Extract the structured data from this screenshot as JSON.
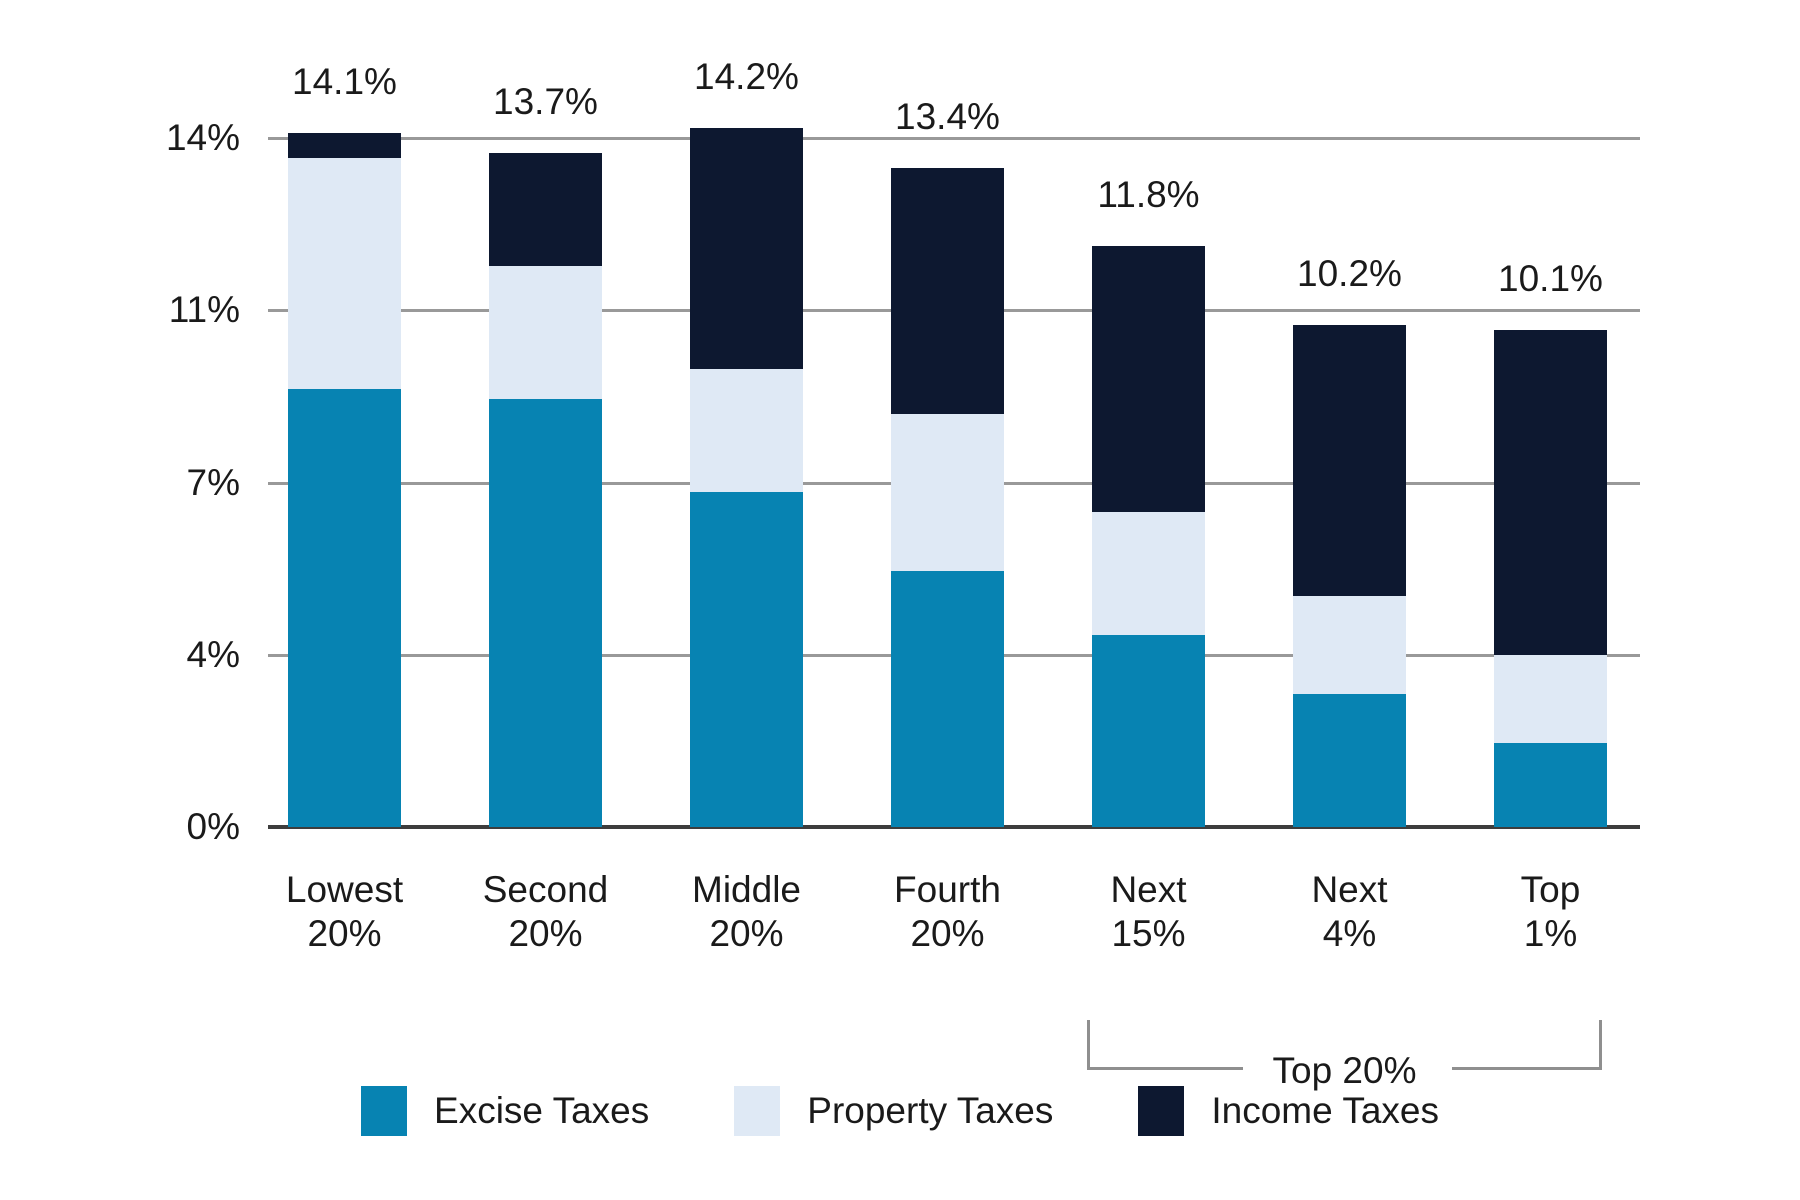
{
  "chart_data": {
    "type": "bar",
    "stacked": true,
    "title": "",
    "xlabel": "",
    "ylabel": "",
    "categories": [
      [
        "Lowest",
        "20%"
      ],
      [
        "Second",
        "20%"
      ],
      [
        "Middle",
        "20%"
      ],
      [
        "Fourth",
        "20%"
      ],
      [
        "Next",
        "15%"
      ],
      [
        "Next",
        "4%"
      ],
      [
        "Top",
        "1%"
      ]
    ],
    "series": [
      {
        "name": "Excise Taxes",
        "color": "#0783b2",
        "values": [
          8.9,
          8.7,
          6.8,
          5.2,
          3.9,
          2.7,
          1.7
        ]
      },
      {
        "name": "Property Taxes",
        "color": "#dfe9f5",
        "values": [
          4.7,
          2.7,
          2.5,
          3.2,
          2.5,
          2.0,
          1.8
        ]
      },
      {
        "name": "Income Taxes",
        "color": "#0d1830",
        "values": [
          0.5,
          2.3,
          4.9,
          5.0,
          5.4,
          5.5,
          6.6
        ]
      }
    ],
    "totals": [
      "14.1%",
      "13.7%",
      "14.2%",
      "13.4%",
      "11.8%",
      "10.2%",
      "10.1%"
    ],
    "y_axis": {
      "min": 0,
      "max": 14,
      "gridline_values": [
        3.5,
        7,
        10.5,
        14
      ],
      "gridline_labels": [
        "4%",
        "7%",
        "11%",
        "14%"
      ],
      "baseline_label": "0%",
      "grid": true
    },
    "group_bracket": {
      "label": "Top 20%",
      "from_category_index": 4,
      "to_category_index": 6
    },
    "legend_position": "bottom",
    "colors": {
      "gridline": "#999999",
      "baseline": "#3d3d3d",
      "bracket": "#8f8f8f",
      "text": "#1a1a1a"
    }
  }
}
